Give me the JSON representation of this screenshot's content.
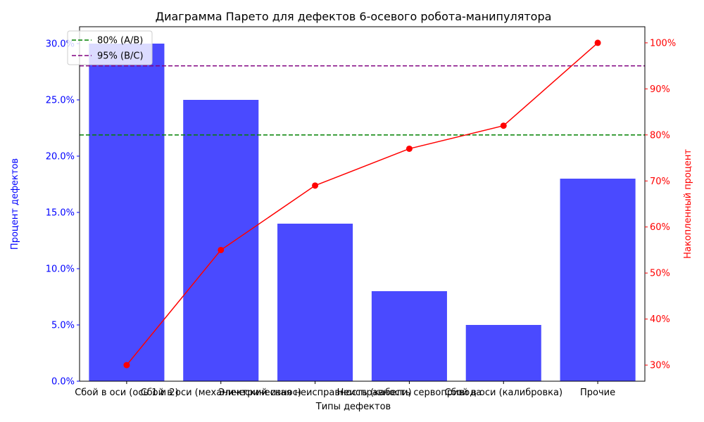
{
  "chart_data": {
    "type": "bar",
    "title": "Диаграмма Парето для дефектов 6-осевого робота-манипулятора",
    "xlabel": "Типы дефектов",
    "ylabel": "Процент дефектов",
    "y2label": "Накопленный процент",
    "categories": [
      "Сбой в оси (ось 1 и 2)",
      "Сбой в оси (механический износ)",
      "Электрическая неисправность (кабели)",
      "Неисправность сервопривода",
      "Сбой в оси (калибровка)",
      "Прочие"
    ],
    "series": [
      {
        "name": "",
        "axis": "left",
        "kind": "bar",
        "color": "#4a4aff",
        "values": [
          30,
          25,
          14,
          8,
          5,
          18
        ]
      },
      {
        "name": "",
        "axis": "right",
        "kind": "line",
        "color": "#ff0000",
        "values": [
          30,
          55,
          69,
          77,
          82,
          100
        ]
      }
    ],
    "ylim": [
      0,
      31.5
    ],
    "yticks": [
      0,
      5,
      10,
      15,
      20,
      25,
      30
    ],
    "ytick_labels": [
      "0.0%",
      "5.0%",
      "10.0%",
      "15.0%",
      "20.0%",
      "25.0%",
      "30.0%"
    ],
    "y2lim": [
      26.5,
      103.5
    ],
    "y2ticks": [
      30,
      40,
      50,
      60,
      70,
      80,
      90,
      100
    ],
    "y2tick_labels": [
      "30%",
      "40%",
      "50%",
      "60%",
      "70%",
      "80%",
      "90%",
      "100%"
    ],
    "reference_lines": [
      {
        "label": "80% (A/B)",
        "axis": "right",
        "value": 80,
        "color": "#008000"
      },
      {
        "label": "95% (B/C)",
        "axis": "right",
        "value": 95,
        "color": "#800080"
      }
    ],
    "legend_position": "top-left",
    "grid": false,
    "left_axis_color": "#0000ff",
    "right_axis_color": "#ff0000"
  }
}
